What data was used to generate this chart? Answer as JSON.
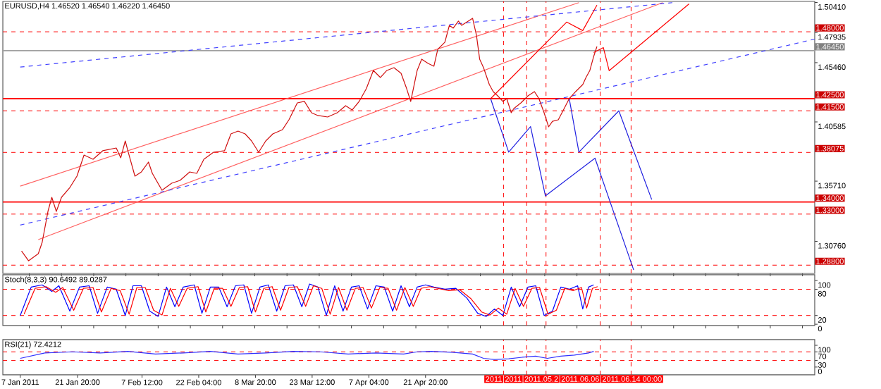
{
  "chart_data": [
    {
      "type": "line",
      "title": "EURUSD,H4 1.46520 1.46540 1.46220 1.46450",
      "xlim": [
        "2011-01-02T12:00",
        "2011-07-31T12:00"
      ],
      "ylim": [
        1.2812,
        1.505
      ],
      "tick_labels": "y",
      "yticks": [
        {
          "value": 1.5041,
          "label": "1.50410"
        },
        {
          "value": 1.47935,
          "label": "1.47935"
        },
        {
          "value": 1.4546,
          "label": "1.45460"
        },
        {
          "value": 1.40585,
          "label": "1.40585"
        },
        {
          "value": 1.3571,
          "label": "1.35710"
        },
        {
          "value": 1.3076,
          "label": "1.30760"
        }
      ],
      "ref_lines": [
        {
          "axis": "y",
          "value": 1.48,
          "label": "1.48000",
          "color": "#ff0000",
          "line_style": "dashed"
        },
        {
          "axis": "y",
          "value": 1.4645,
          "label": "1.46450",
          "color": "#a0a0a0",
          "line_style": "solid"
        },
        {
          "axis": "y",
          "value": 1.425,
          "label": "1.42500",
          "color": "#ff0000",
          "line_style": "solid"
        },
        {
          "axis": "y",
          "value": 1.415,
          "label": "1.41500",
          "color": "#ff0000",
          "line_style": "dashed"
        },
        {
          "axis": "y",
          "value": 1.38075,
          "label": "1.38075",
          "color": "#ff0000",
          "line_style": "dashed"
        },
        {
          "axis": "y",
          "value": 1.34,
          "label": "1.34000",
          "color": "#ff0000",
          "line_style": "solid"
        },
        {
          "axis": "y",
          "value": 1.33,
          "label": "1.33000",
          "color": "#ff0000",
          "line_style": "dashed"
        },
        {
          "axis": "y",
          "value": 1.288,
          "label": "1.28800",
          "color": "#ff0000",
          "line_style": "dashed"
        },
        {
          "axis": "x",
          "value": "2011-05-12",
          "color": "#ff0000",
          "line_style": "dashed"
        },
        {
          "axis": "x",
          "value": "2011-05-18",
          "color": "#ff0000",
          "line_style": "dashed"
        },
        {
          "axis": "x",
          "value": "2011-05-23",
          "color": "#ff0000",
          "line_style": "dashed"
        },
        {
          "axis": "x",
          "value": "2011-06-06",
          "color": "#ff0000",
          "line_style": "dashed"
        },
        {
          "axis": "x",
          "value": "2011-06-14",
          "color": "#ff0000",
          "line_style": "dashed"
        }
      ],
      "series": [
        {
          "color": "#ff6060",
          "line_style": "solid",
          "x": [
            "2011-01-07T00:00",
            "2011-05-31T12:00"
          ],
          "values": [
            1.353,
            1.504
          ]
        },
        {
          "color": "#ff6060",
          "line_style": "solid",
          "x": [
            "2011-01-11T16:00",
            "2011-06-22T04:00"
          ],
          "values": [
            1.309,
            1.504
          ]
        },
        {
          "color": "#4040ff",
          "line_style": "dashed",
          "x": [
            "2011-01-07T00:00",
            "2011-06-24T16:00"
          ],
          "values": [
            1.451,
            1.504
          ]
        },
        {
          "color": "#4040ff",
          "line_style": "dashed",
          "x": [
            "2011-01-07T00:00",
            "2011-07-31T12:00"
          ],
          "values": [
            1.321,
            1.474
          ]
        },
        {
          "color": "#d01010",
          "line_style": "solid",
          "x": [
            "2011-01-07T08:00",
            "2011-01-09T04:00",
            "2011-01-11T16:00",
            "2011-01-12T16:00",
            "2011-01-14T04:00",
            "2011-01-15T04:00",
            "2011-01-16T08:00",
            "2011-01-17T16:00",
            "2011-01-19T20:00",
            "2011-01-21T16:00",
            "2011-01-23T12:00",
            "2011-01-25T20:00",
            "2011-01-28T08:00",
            "2011-01-31T20:00",
            "2011-02-02T00:00",
            "2011-02-03T04:00",
            "2011-02-03T20:00",
            "2011-02-05T16:00",
            "2011-02-07T08:00",
            "2011-02-09T04:00",
            "2011-02-10T04:00",
            "2011-02-12T16:00",
            "2011-02-15T04:00",
            "2011-02-17T08:00",
            "2011-02-19T20:00",
            "2011-02-21T16:00",
            "2011-02-23T12:00",
            "2011-02-26T00:00",
            "2011-02-28T20:00",
            "2011-03-02T12:00",
            "2011-03-04T08:00",
            "2011-03-06T04:00",
            "2011-03-07T20:00",
            "2011-03-09T16:00",
            "2011-03-11T12:00",
            "2011-03-13T08:00",
            "2011-03-15T20:00",
            "2011-03-17T12:00",
            "2011-03-19T16:00",
            "2011-03-21T12:00",
            "2011-03-23T08:00",
            "2011-03-25T00:00",
            "2011-03-27T12:00",
            "2011-03-30T00:00",
            "2011-04-01T04:00",
            "2011-04-02T20:00",
            "2011-04-04T16:00",
            "2011-04-06T12:00",
            "2011-04-08T08:00",
            "2011-04-10T04:00",
            "2011-04-11T20:00",
            "2011-04-13T16:00",
            "2011-04-15T12:00",
            "2011-04-16T20:00",
            "2011-04-18T00:00",
            "2011-04-19T16:00",
            "2011-04-20T20:00",
            "2011-04-22T12:00",
            "2011-04-24T00:00",
            "2011-04-25T00:00",
            "2011-04-26T20:00",
            "2011-04-28T00:00",
            "2011-04-29T00:00",
            "2011-04-30T08:00",
            "2011-05-01T04:00",
            "2011-05-04T00:00",
            "2011-05-05T00:00",
            "2011-05-05T20:00",
            "2011-05-06T20:00",
            "2011-05-08T08:00",
            "2011-05-09T08:00",
            "2011-05-10T12:00",
            "2011-05-11T20:00",
            "2011-05-12T20:00",
            "2011-05-14T00:00",
            "2011-05-14T16:00",
            "2011-05-16T12:00",
            "2011-05-18T08:00",
            "2011-05-20T00:00",
            "2011-05-21T04:00",
            "2011-05-22T12:00",
            "2011-05-23T16:00",
            "2011-05-24T16:00",
            "2011-05-26T04:00",
            "2011-05-27T12:00",
            "2011-05-29T00:00",
            "2011-05-30T16:00",
            "2011-06-01T12:00",
            "2011-06-02T08:00",
            "2011-06-03T08:00",
            "2011-06-04T08:00",
            "2011-06-05T04:00"
          ],
          "values": [
            1.2997,
            1.2916,
            1.2974,
            1.3067,
            1.3322,
            1.3438,
            1.3322,
            1.3438,
            1.3519,
            1.3612,
            1.3786,
            1.3751,
            1.3821,
            1.3844,
            1.3763,
            1.3902,
            1.3821,
            1.3612,
            1.3647,
            1.3728,
            1.3635,
            1.3496,
            1.3554,
            1.3577,
            1.3647,
            1.3635,
            1.3751,
            1.3809,
            1.3821,
            1.396,
            1.3983,
            1.396,
            1.3902,
            1.3809,
            1.3902,
            1.396,
            1.3995,
            1.4076,
            1.4215,
            1.4227,
            1.4134,
            1.4111,
            1.4099,
            1.4134,
            1.4192,
            1.4157,
            1.4227,
            1.4331,
            1.4482,
            1.4424,
            1.4482,
            1.4505,
            1.4459,
            1.4343,
            1.4227,
            1.4482,
            1.4575,
            1.454,
            1.4517,
            1.4656,
            1.4714,
            1.4853,
            1.483,
            1.4888,
            1.4853,
            1.4911,
            1.4772,
            1.4575,
            1.4505,
            1.4366,
            1.4308,
            1.4273,
            1.4227,
            1.425,
            1.4134,
            1.4169,
            1.4215,
            1.4273,
            1.4308,
            1.425,
            1.4134,
            1.4018,
            1.4064,
            1.4076,
            1.4157,
            1.425,
            1.4308,
            1.4366,
            1.4424,
            1.4482,
            1.4598,
            1.4679
          ]
        },
        {
          "color": "#ff0000",
          "line_style": "solid",
          "x": [
            "2011-05-08T16:00",
            "2011-05-28T08:00",
            "2011-06-01T12:00",
            "2011-06-05T04:00"
          ],
          "values": [
            1.425,
            1.488,
            1.481,
            1.502
          ]
        },
        {
          "color": "#ff0000",
          "line_style": "solid",
          "x": [
            "2011-06-04T08:00",
            "2011-06-06T20:00",
            "2011-06-08T08:00",
            "2011-06-29T00:00"
          ],
          "values": [
            1.463,
            1.467,
            1.448,
            1.503
          ]
        },
        {
          "color": "#2020e0",
          "line_style": "solid",
          "x": [
            "2011-05-08T16:00",
            "2011-05-13T08:00",
            "2011-05-19T00:00",
            "2011-05-22T20:00",
            "2011-06-04T16:00",
            "2011-06-14T16:00"
          ],
          "values": [
            1.425,
            1.381,
            1.402,
            1.345,
            1.376,
            1.284
          ]
        },
        {
          "color": "#2020e0",
          "line_style": "solid",
          "x": [
            "2011-05-29T00:00",
            "2011-05-31T12:00",
            "2011-06-10T20:00",
            "2011-06-19T08:00"
          ],
          "values": [
            1.425,
            1.381,
            1.415,
            1.342
          ]
        }
      ]
    },
    {
      "type": "line",
      "title": "Stoch(8,3,3) 90.6492 89.0287",
      "xlim": [
        "2011-01-02T12:00",
        "2011-07-31T12:00"
      ],
      "ylim": [
        -3,
        113
      ],
      "tick_labels": "y",
      "yticks": [
        100,
        80,
        20,
        0
      ],
      "ref_lines": [
        {
          "axis": "y",
          "value": 80,
          "color": "#ff0000",
          "line_style": "dashed"
        },
        {
          "axis": "y",
          "value": 20,
          "color": "#ff0000",
          "line_style": "dashed"
        },
        {
          "axis": "x",
          "value": "2011-05-12",
          "color": "#ff0000",
          "line_style": "dashed"
        },
        {
          "axis": "x",
          "value": "2011-05-18",
          "color": "#ff0000",
          "line_style": "dashed"
        },
        {
          "axis": "x",
          "value": "2011-05-23",
          "color": "#ff0000",
          "line_style": "dashed"
        },
        {
          "axis": "x",
          "value": "2011-06-06",
          "color": "#ff0000",
          "line_style": "dashed"
        },
        {
          "axis": "x",
          "value": "2011-06-14",
          "color": "#ff0000",
          "line_style": "dashed"
        }
      ],
      "series": [
        {
          "color": "#0000ff",
          "line_style": "solid",
          "x": [
            "2011-01-07T00:00",
            "2011-01-09T20:00",
            "2011-01-12T16:00",
            "2011-01-15T04:00",
            "2011-01-17T00:00",
            "2011-01-19T20:00",
            "2011-01-22T08:00",
            "2011-01-24T20:00",
            "2011-01-27T00:00",
            "2011-01-29T12:00",
            "2011-01-31T20:00",
            "2011-02-03T04:00",
            "2011-02-05T04:00",
            "2011-02-07T08:00",
            "2011-02-09T12:00",
            "2011-02-11T16:00",
            "2011-02-13T20:00",
            "2011-02-16T00:00",
            "2011-02-18T04:00",
            "2011-02-21T00:00",
            "2011-02-23T00:00",
            "2011-02-25T04:00",
            "2011-02-27T08:00",
            "2011-03-01T12:00",
            "2011-03-03T16:00",
            "2011-03-05T20:00",
            "2011-03-07T20:00",
            "2011-03-10T00:00",
            "2011-03-12T04:00",
            "2011-03-14T08:00",
            "2011-03-16T12:00",
            "2011-03-18T16:00",
            "2011-03-20T20:00",
            "2011-03-22T20:00",
            "2011-03-25T00:00",
            "2011-03-27T04:00",
            "2011-03-29T08:00",
            "2011-03-31T12:00",
            "2011-04-02T16:00",
            "2011-04-04T16:00",
            "2011-04-06T20:00",
            "2011-04-09T00:00",
            "2011-04-11T04:00",
            "2011-04-13T08:00",
            "2011-04-15T12:00",
            "2011-04-17T16:00",
            "2011-04-19T16:00",
            "2011-04-21T20:00",
            "2011-04-24T00:00",
            "2011-04-26T20:00",
            "2011-04-29T16:00",
            "2011-05-02T12:00",
            "2011-05-05T08:00",
            "2011-05-07T12:00",
            "2011-05-09T16:00",
            "2011-05-11T20:00",
            "2011-05-14T00:00",
            "2011-05-16T04:00",
            "2011-05-18T08:00",
            "2011-05-20T08:00",
            "2011-05-22T12:00",
            "2011-05-24T16:00",
            "2011-05-26T20:00",
            "2011-05-29T00:00",
            "2011-05-31T04:00",
            "2011-06-01T12:00",
            "2011-06-03T00:00",
            "2011-06-04T08:00"
          ],
          "values": [
            20,
            85,
            90,
            75,
            88,
            30,
            85,
            88,
            25,
            85,
            80,
            20,
            88,
            88,
            30,
            18,
            85,
            40,
            85,
            90,
            25,
            85,
            85,
            40,
            88,
            90,
            25,
            85,
            90,
            30,
            88,
            90,
            40,
            92,
            85,
            20,
            88,
            30,
            85,
            88,
            35,
            88,
            85,
            30,
            88,
            40,
            85,
            90,
            85,
            80,
            82,
            60,
            25,
            18,
            35,
            20,
            85,
            40,
            85,
            88,
            20,
            30,
            85,
            80,
            88,
            35,
            85,
            90
          ]
        },
        {
          "color": "#ff0000",
          "line_style": "solid",
          "x": [
            "2011-01-08T00:00",
            "2011-01-10T20:00",
            "2011-01-13T16:00",
            "2011-01-16T04:00",
            "2011-01-18T00:00",
            "2011-01-20T20:00",
            "2011-01-23T08:00",
            "2011-01-25T20:00",
            "2011-01-28T00:00",
            "2011-01-30T12:00",
            "2011-02-01T20:00",
            "2011-02-04T04:00",
            "2011-02-06T04:00",
            "2011-02-08T08:00",
            "2011-02-10T12:00",
            "2011-02-12T16:00",
            "2011-02-14T20:00",
            "2011-02-17T00:00",
            "2011-02-19T04:00",
            "2011-02-22T00:00",
            "2011-02-24T00:00",
            "2011-02-26T04:00",
            "2011-02-28T08:00",
            "2011-03-02T12:00",
            "2011-03-04T16:00",
            "2011-03-06T20:00",
            "2011-03-08T20:00",
            "2011-03-11T00:00",
            "2011-03-13T04:00",
            "2011-03-15T08:00",
            "2011-03-17T12:00",
            "2011-03-19T16:00",
            "2011-03-21T20:00",
            "2011-03-23T20:00",
            "2011-03-26T00:00",
            "2011-03-28T04:00",
            "2011-03-30T08:00",
            "2011-04-01T12:00",
            "2011-04-03T16:00",
            "2011-04-05T16:00",
            "2011-04-07T20:00",
            "2011-04-10T00:00",
            "2011-04-12T04:00",
            "2011-04-14T08:00",
            "2011-04-16T12:00",
            "2011-04-18T16:00",
            "2011-04-20T16:00",
            "2011-04-22T20:00",
            "2011-04-25T00:00",
            "2011-04-27T20:00",
            "2011-04-30T16:00",
            "2011-05-03T12:00",
            "2011-05-06T08:00",
            "2011-05-08T12:00",
            "2011-05-10T16:00",
            "2011-05-12T20:00",
            "2011-05-15T00:00",
            "2011-05-17T04:00",
            "2011-05-19T08:00",
            "2011-05-21T08:00",
            "2011-05-23T12:00",
            "2011-05-25T16:00",
            "2011-05-27T20:00",
            "2011-05-30T00:00",
            "2011-06-01T04:00",
            "2011-06-02T12:00",
            "2011-06-04T00:00",
            "2011-06-05T08:00"
          ],
          "values": [
            23,
            82,
            86,
            73,
            84,
            32,
            82,
            84,
            28,
            82,
            77,
            23,
            84,
            84,
            32,
            21,
            82,
            41,
            82,
            86,
            28,
            82,
            82,
            41,
            84,
            86,
            28,
            82,
            86,
            32,
            84,
            86,
            41,
            88,
            82,
            23,
            84,
            32,
            82,
            84,
            37,
            84,
            82,
            32,
            84,
            41,
            82,
            86,
            82,
            77,
            79,
            59,
            28,
            21,
            37,
            23,
            82,
            41,
            82,
            84,
            23,
            32,
            82,
            77,
            84,
            37,
            82,
            86
          ]
        }
      ]
    },
    {
      "type": "line",
      "title": "RSI(21) 72.4212",
      "xlim": [
        "2011-01-02T12:00",
        "2011-07-31T12:00"
      ],
      "ylim": [
        -36,
        126
      ],
      "xticks": [
        {
          "value": "2011-01-07T00:00",
          "label": "7 Jan 2011"
        },
        {
          "value": "2011-01-21T20:00",
          "label": "21 Jan 20:00"
        },
        {
          "value": "2011-02-07T12:00",
          "label": "7 Feb 12:00"
        },
        {
          "value": "2011-02-22T04:00",
          "label": "22 Feb 04:00"
        },
        {
          "value": "2011-03-08T20:00",
          "label": "8 Mar 20:00"
        },
        {
          "value": "2011-03-23T12:00",
          "label": "23 Mar 12:00"
        },
        {
          "value": "2011-04-07T04:00",
          "label": "7 Apr 04:00"
        },
        {
          "value": "2011-04-21T20:00",
          "label": "21 Apr 20:00"
        }
      ],
      "yticks": [
        100,
        70,
        30,
        0
      ],
      "ref_lines": [
        {
          "axis": "y",
          "value": 70,
          "color": "#ff0000",
          "line_style": "dashed"
        },
        {
          "axis": "y",
          "value": 30,
          "color": "#ff0000",
          "line_style": "dashed"
        },
        {
          "axis": "x",
          "value": "2011-05-12",
          "label": "2011",
          "color": "#ff0000",
          "line_style": "dashed"
        },
        {
          "axis": "x",
          "value": "2011-05-18",
          "label": "2011",
          "color": "#ff0000",
          "line_style": "dashed"
        },
        {
          "axis": "x",
          "value": "2011-05-23",
          "label": "2011.05.2",
          "color": "#ff0000",
          "line_style": "dashed"
        },
        {
          "axis": "x",
          "value": "2011-06-06",
          "label": "2011.06.06",
          "color": "#ff0000",
          "line_style": "dashed"
        },
        {
          "axis": "x",
          "value": "2011-06-14",
          "label": "2011.06.14 00:00",
          "color": "#ff0000",
          "line_style": "dashed"
        }
      ],
      "series": [
        {
          "color": "#3030ff",
          "line_style": "solid",
          "x": [
            "2011-01-07T00:00",
            "2011-01-13T08:00",
            "2011-01-20T12:00",
            "2011-01-27T16:00",
            "2011-02-03T20:00",
            "2011-02-11T00:00",
            "2011-02-18T04:00",
            "2011-02-25T04:00",
            "2011-03-04T08:00",
            "2011-03-11T12:00",
            "2011-03-18T16:00",
            "2011-03-25T16:00",
            "2011-04-01T20:00",
            "2011-04-09T00:00",
            "2011-04-16T04:00",
            "2011-04-19T16:00",
            "2011-04-23T08:00",
            "2011-04-28T16:00",
            "2011-05-04T00:00",
            "2011-05-06T20:00",
            "2011-05-09T16:00",
            "2011-05-13T08:00",
            "2011-05-16T20:00",
            "2011-05-20T08:00",
            "2011-05-23T08:00",
            "2011-05-26T20:00",
            "2011-05-30T08:00",
            "2011-06-03T00:00",
            "2011-06-04T08:00"
          ],
          "values": [
            40,
            65,
            70,
            65,
            72,
            60,
            65,
            72,
            60,
            65,
            72,
            70,
            60,
            65,
            60,
            70,
            72,
            68,
            60,
            40,
            35,
            38,
            45,
            50,
            40,
            50,
            55,
            65,
            72
          ]
        }
      ]
    }
  ]
}
